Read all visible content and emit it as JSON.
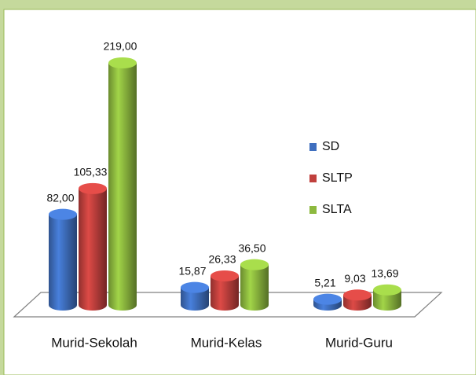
{
  "chart_data": {
    "type": "bar",
    "categories": [
      "Murid-Sekolah",
      "Murid-Kelas",
      "Murid-Guru"
    ],
    "series": [
      {
        "name": "SD",
        "color": "#3f6fbf",
        "values": [
          82,
          15.87,
          5.21
        ],
        "value_labels": [
          "82,00",
          "15,87",
          "5,21"
        ]
      },
      {
        "name": "SLTP",
        "color": "#c0403d",
        "values": [
          105.33,
          26.33,
          9.03
        ],
        "value_labels": [
          "105,33",
          "26,33",
          "9,03"
        ]
      },
      {
        "name": "SLTA",
        "color": "#8db93f",
        "values": [
          219,
          36.5,
          13.69
        ],
        "value_labels": [
          "219,00",
          "36,50",
          "13,69"
        ]
      }
    ],
    "legend": "right"
  }
}
